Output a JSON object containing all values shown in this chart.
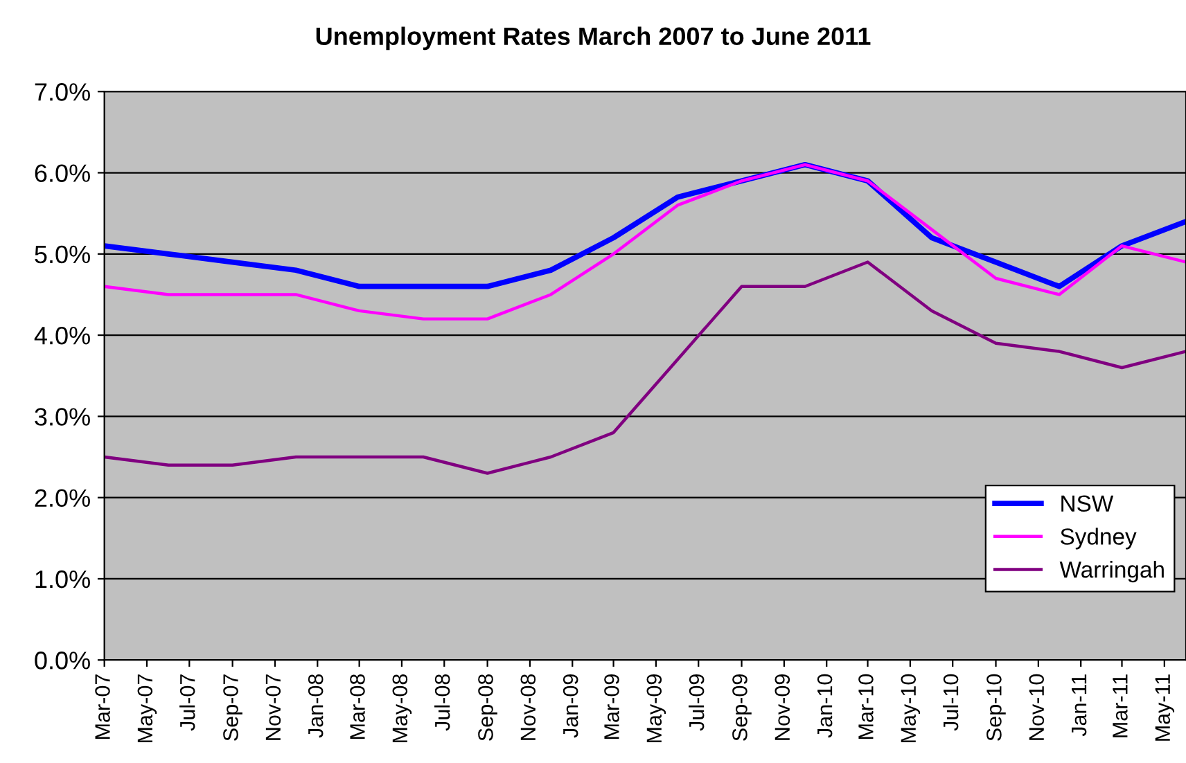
{
  "chart_data": {
    "type": "line",
    "title": "Unemployment Rates March 2007 to June 2011",
    "x": [
      "2007-03",
      "2007-06",
      "2007-09",
      "2007-12",
      "2008-03",
      "2008-06",
      "2008-09",
      "2008-12",
      "2009-03",
      "2009-06",
      "2009-09",
      "2009-12",
      "2010-03",
      "2010-06",
      "2010-09",
      "2010-12",
      "2011-03",
      "2011-06"
    ],
    "series": [
      {
        "name": "NSW",
        "color": "#0000ff",
        "values": [
          5.1,
          5.0,
          4.9,
          4.8,
          4.6,
          4.6,
          4.6,
          4.8,
          5.2,
          5.7,
          5.9,
          6.1,
          5.9,
          5.2,
          4.9,
          4.6,
          5.1,
          5.4
        ]
      },
      {
        "name": "Sydney",
        "color": "#ff00ff",
        "values": [
          4.6,
          4.5,
          4.5,
          4.5,
          4.3,
          4.2,
          4.2,
          4.5,
          5.0,
          5.6,
          5.9,
          6.1,
          5.9,
          5.3,
          4.7,
          4.5,
          5.1,
          4.9
        ]
      },
      {
        "name": "Warringah",
        "color": "#800080",
        "values": [
          2.5,
          2.4,
          2.4,
          2.5,
          2.5,
          2.5,
          2.3,
          2.5,
          2.8,
          3.7,
          4.6,
          4.6,
          4.9,
          4.3,
          3.9,
          3.8,
          3.6,
          3.8
        ]
      }
    ],
    "xlim": [
      "2007-03",
      "2011-06"
    ],
    "xticks": [
      {
        "value": "2007-03",
        "label": "Mar-07"
      },
      {
        "value": "2007-05",
        "label": "May-07"
      },
      {
        "value": "2007-07",
        "label": "Jul-07"
      },
      {
        "value": "2007-09",
        "label": "Sep-07"
      },
      {
        "value": "2007-11",
        "label": "Nov-07"
      },
      {
        "value": "2008-01",
        "label": "Jan-08"
      },
      {
        "value": "2008-03",
        "label": "Mar-08"
      },
      {
        "value": "2008-05",
        "label": "May-08"
      },
      {
        "value": "2008-07",
        "label": "Jul-08"
      },
      {
        "value": "2008-09",
        "label": "Sep-08"
      },
      {
        "value": "2008-11",
        "label": "Nov-08"
      },
      {
        "value": "2009-01",
        "label": "Jan-09"
      },
      {
        "value": "2009-03",
        "label": "Mar-09"
      },
      {
        "value": "2009-05",
        "label": "May-09"
      },
      {
        "value": "2009-07",
        "label": "Jul-09"
      },
      {
        "value": "2009-09",
        "label": "Sep-09"
      },
      {
        "value": "2009-11",
        "label": "Nov-09"
      },
      {
        "value": "2010-01",
        "label": "Jan-10"
      },
      {
        "value": "2010-03",
        "label": "Mar-10"
      },
      {
        "value": "2010-05",
        "label": "May-10"
      },
      {
        "value": "2010-07",
        "label": "Jul-10"
      },
      {
        "value": "2010-09",
        "label": "Sep-10"
      },
      {
        "value": "2010-11",
        "label": "Nov-10"
      },
      {
        "value": "2011-01",
        "label": "Jan-11"
      },
      {
        "value": "2011-03",
        "label": "Mar-11"
      },
      {
        "value": "2011-05",
        "label": "May-11"
      }
    ],
    "ylim": [
      0,
      7
    ],
    "yticks": [
      {
        "value": 0,
        "label": "0.0%"
      },
      {
        "value": 1,
        "label": "1.0%"
      },
      {
        "value": 2,
        "label": "2.0%"
      },
      {
        "value": 3,
        "label": "3.0%"
      },
      {
        "value": 4,
        "label": "4.0%"
      },
      {
        "value": 5,
        "label": "5.0%"
      },
      {
        "value": 6,
        "label": "6.0%"
      },
      {
        "value": 7,
        "label": "7.0%"
      }
    ],
    "grid": "y",
    "legend": "lower right",
    "marker": "none",
    "line_style": "solid"
  }
}
